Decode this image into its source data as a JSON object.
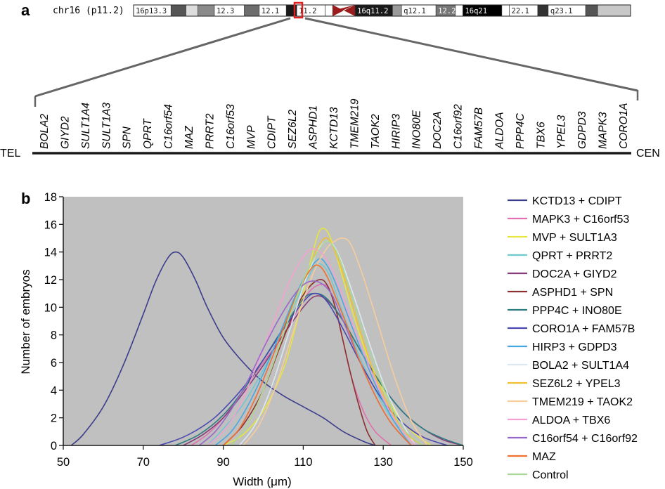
{
  "panel_a": {
    "label": "a",
    "chromosome_title": "chr16 (p11.2)",
    "bands": [
      {
        "label": "16p13.3",
        "shade": "#ffffff"
      },
      {
        "label": "",
        "shade": "#555555"
      },
      {
        "label": "",
        "shade": "#dddddd"
      },
      {
        "label": "",
        "shade": "#8a8a8a"
      },
      {
        "label": "12.3",
        "shade": "#ffffff"
      },
      {
        "label": "",
        "shade": "#6d6d6d"
      },
      {
        "label": "12.1",
        "shade": "#ffffff"
      },
      {
        "label": "",
        "shade": "#1a1a1a"
      },
      {
        "label": "11.2",
        "shade": "#ffffff"
      },
      {
        "label": "",
        "shade": "#ffffff"
      },
      {
        "label": "",
        "shade": "#9b1c1c"
      },
      {
        "label": "16q11.2",
        "shade": "#1a1a1a"
      },
      {
        "label": "",
        "shade": "#9a9a9a"
      },
      {
        "label": "q12.1",
        "shade": "#ffffff"
      },
      {
        "label": "12.2",
        "shade": "#777777"
      },
      {
        "label": "",
        "shade": "#ffffff"
      },
      {
        "label": "16q21",
        "shade": "#000000"
      },
      {
        "label": "",
        "shade": "#ffffff"
      },
      {
        "label": "22.1",
        "shade": "#ffffff"
      },
      {
        "label": "",
        "shade": "#333333"
      },
      {
        "label": "q23.1",
        "shade": "#ffffff"
      },
      {
        "label": "",
        "shade": "#555555"
      },
      {
        "label": "",
        "shade": "#c8c8c8"
      }
    ],
    "highlight_color": "#e02020",
    "tel_label": "TEL",
    "cen_label": "CEN",
    "genes": [
      "BOLA2",
      "GIYD2",
      "SULT1A4",
      "SULT1A3",
      "SPN",
      "QPRT",
      "C16orf54",
      "MAZ",
      "PRRT2",
      "C16orf53",
      "MVP",
      "CDIPT",
      "SEZ6L2",
      "ASPHD1",
      "KCTD13",
      "TMEM219",
      "TAOK2",
      "HIRIP3",
      "INO80E",
      "DOC2A",
      "C16orf92",
      "FAM57B",
      "ALDOA",
      "PPP4C",
      "TBX6",
      "YPEL3",
      "GDPD3",
      "MAPK3",
      "CORO1A"
    ]
  },
  "panel_b": {
    "label": "b"
  },
  "chart_data": {
    "type": "line",
    "title": "",
    "xlabel": "Width (μm)",
    "ylabel": "Number of embryos",
    "xlim": [
      50,
      150
    ],
    "ylim": [
      0,
      18
    ],
    "xticks": [
      50,
      70,
      90,
      110,
      130,
      150
    ],
    "yticks": [
      0,
      2,
      4,
      6,
      8,
      10,
      12,
      14,
      16,
      18
    ],
    "plot_background": "#c0c0c0",
    "grid": false,
    "legend_position": "right",
    "series": [
      {
        "name": "KCTD13 + CDIPT",
        "color": "#3c3c8c",
        "x": [
          52,
          55,
          60,
          65,
          70,
          73,
          76,
          78,
          80,
          83,
          86,
          90,
          95,
          100,
          105,
          110,
          115,
          120,
          125,
          128
        ],
        "y": [
          0,
          0.8,
          2.8,
          5.8,
          9.5,
          11.8,
          13.5,
          14.0,
          13.6,
          12.0,
          10.0,
          7.8,
          6.0,
          4.6,
          3.6,
          2.8,
          2.0,
          1.0,
          0.3,
          0
        ]
      },
      {
        "name": "MAPK3 + C16orf53",
        "color": "#e070b0",
        "x": [
          82,
          86,
          90,
          95,
          100,
          105,
          110,
          113,
          116,
          118,
          120,
          122,
          125,
          128,
          132
        ],
        "y": [
          0,
          0.8,
          2.0,
          4.0,
          6.0,
          8.0,
          10.5,
          11.5,
          11.5,
          10.0,
          7.5,
          5.0,
          2.5,
          1.0,
          0
        ]
      },
      {
        "name": "MVP + SULT1A3",
        "color": "#e6e640",
        "x": [
          90,
          95,
          100,
          105,
          108,
          110,
          112,
          114,
          116,
          118,
          120,
          123,
          126,
          130,
          134,
          138,
          142
        ],
        "y": [
          0,
          0.8,
          2.5,
          5.5,
          8.5,
          11.0,
          13.5,
          15.5,
          15.5,
          14.0,
          12.0,
          9.0,
          6.5,
          4.0,
          2.0,
          0.8,
          0
        ]
      },
      {
        "name": "QPRT + PRRT2",
        "color": "#70c8d0",
        "x": [
          86,
          90,
          95,
          100,
          105,
          110,
          113,
          115,
          117,
          120,
          124,
          128,
          132,
          136,
          140
        ],
        "y": [
          0,
          1.2,
          3.0,
          5.5,
          8.5,
          11.5,
          13.0,
          13.0,
          12.0,
          9.5,
          6.5,
          4.0,
          2.0,
          0.8,
          0
        ]
      },
      {
        "name": "DOC2A + GIYD2",
        "color": "#883c78",
        "x": [
          80,
          85,
          90,
          95,
          100,
          105,
          110,
          113,
          116,
          120,
          125,
          130,
          135,
          140,
          145,
          150
        ],
        "y": [
          0,
          0.8,
          2.0,
          3.8,
          5.8,
          8.0,
          10.0,
          10.8,
          10.5,
          9.0,
          6.5,
          4.2,
          2.4,
          1.2,
          0.4,
          0
        ]
      },
      {
        "name": "ASPHD1 + SPN",
        "color": "#8c3030",
        "x": [
          90,
          95,
          100,
          104,
          108,
          111,
          114,
          116,
          118,
          120,
          122,
          124,
          126,
          128
        ],
        "y": [
          0,
          1.5,
          4.0,
          7.0,
          9.8,
          11.3,
          12.0,
          11.6,
          10.0,
          7.5,
          5.0,
          2.8,
          1.0,
          0
        ]
      },
      {
        "name": "PPP4C + INO80E",
        "color": "#2e7c80",
        "x": [
          78,
          84,
          90,
          95,
          100,
          105,
          110,
          113,
          116,
          120,
          125,
          130,
          135,
          140,
          145,
          150
        ],
        "y": [
          0,
          0.8,
          2.2,
          4.0,
          6.2,
          8.5,
          10.6,
          11.0,
          10.6,
          9.0,
          6.5,
          4.2,
          2.4,
          1.2,
          0.5,
          0
        ]
      },
      {
        "name": "CORO1A + FAM57B",
        "color": "#4848b0",
        "x": [
          74,
          80,
          86,
          90,
          95,
          100,
          105,
          110,
          113,
          116,
          120,
          125,
          130,
          135,
          140,
          146
        ],
        "y": [
          0,
          0.6,
          1.6,
          2.6,
          4.2,
          6.2,
          8.4,
          10.4,
          11.0,
          10.4,
          8.4,
          5.6,
          3.2,
          1.6,
          0.6,
          0
        ]
      },
      {
        "name": "HIRP3 + GDPD3",
        "color": "#48a8e0",
        "x": [
          88,
          92,
          96,
          100,
          104,
          108,
          111,
          114,
          116,
          118,
          121,
          125,
          129,
          133,
          137
        ],
        "y": [
          0,
          1.0,
          2.8,
          5.2,
          8.0,
          10.8,
          12.5,
          13.5,
          13.0,
          11.8,
          9.5,
          6.5,
          3.8,
          1.6,
          0
        ]
      },
      {
        "name": "BOLA2 + SULT1A4",
        "color": "#dce8f0",
        "x": [
          94,
          98,
          102,
          106,
          110,
          112,
          114,
          116,
          118,
          120,
          123,
          127,
          131,
          135,
          138
        ],
        "y": [
          0,
          1.5,
          4.2,
          7.8,
          11.5,
          13.0,
          14.3,
          14.8,
          14.3,
          13.0,
          10.5,
          7.0,
          3.8,
          1.5,
          0
        ]
      },
      {
        "name": "SEZ6L2 + YPEL3",
        "color": "#f0c030",
        "x": [
          92,
          96,
          100,
          104,
          108,
          111,
          114,
          116,
          118,
          121,
          124,
          128,
          132,
          136,
          140
        ],
        "y": [
          0,
          1.5,
          4.0,
          7.2,
          10.5,
          12.5,
          14.5,
          15.0,
          14.0,
          11.5,
          8.5,
          5.0,
          2.5,
          0.8,
          0
        ]
      },
      {
        "name": "TMEM219 + TAOK2",
        "color": "#f8cc9c",
        "x": [
          95,
          99,
          103,
          107,
          110,
          113,
          116,
          118,
          120,
          122,
          125,
          129,
          133,
          137,
          141
        ],
        "y": [
          0,
          1.5,
          4.2,
          7.8,
          10.5,
          12.8,
          14.3,
          14.8,
          15.0,
          14.5,
          12.2,
          8.5,
          4.8,
          1.8,
          0
        ]
      },
      {
        "name": "ALDOA + TBX6",
        "color": "#f4a0d0",
        "x": [
          86,
          90,
          94,
          98,
          102,
          106,
          109,
          112,
          115,
          118,
          121,
          125,
          129,
          133,
          138
        ],
        "y": [
          0,
          1.0,
          2.8,
          5.5,
          8.5,
          11.5,
          13.2,
          14.2,
          13.8,
          12.2,
          9.8,
          6.8,
          4.0,
          1.8,
          0
        ]
      },
      {
        "name": "C16orf54 + C16orf92",
        "color": "#9868c8",
        "x": [
          84,
          88,
          92,
          96,
          100,
          104,
          108,
          111,
          114,
          117,
          120,
          124,
          128,
          132,
          137
        ],
        "y": [
          0,
          1.0,
          2.6,
          4.6,
          7.0,
          9.2,
          11.0,
          11.8,
          11.8,
          11.0,
          9.0,
          6.2,
          3.6,
          1.6,
          0
        ]
      },
      {
        "name": "MAZ",
        "color": "#f07030",
        "x": [
          90,
          94,
          98,
          102,
          106,
          109,
          112,
          114,
          116,
          118,
          121,
          124,
          128,
          132,
          137
        ],
        "y": [
          0,
          1.2,
          3.4,
          6.2,
          9.2,
          11.3,
          12.8,
          13.0,
          12.2,
          10.8,
          8.6,
          6.2,
          3.6,
          1.6,
          0
        ]
      },
      {
        "name": "Control",
        "color": "#a8d898",
        "x": [
          92,
          96,
          100,
          104,
          108,
          111,
          114,
          116,
          118,
          120,
          123,
          127,
          131,
          135,
          140
        ],
        "y": [
          0,
          1.5,
          4.0,
          7.2,
          10.5,
          12.6,
          14.2,
          14.8,
          14.2,
          12.8,
          10.0,
          6.5,
          3.5,
          1.2,
          0
        ]
      }
    ]
  }
}
